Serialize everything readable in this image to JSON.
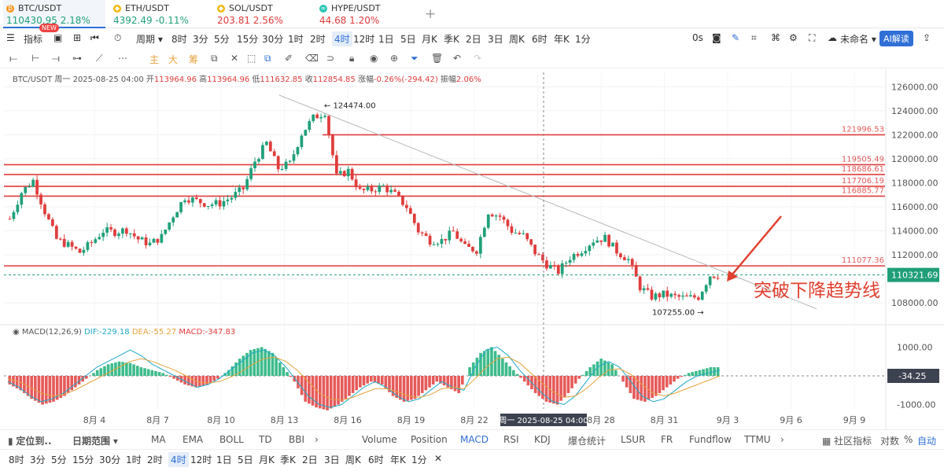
{
  "tickers": [
    {
      "symbol": "BTC/USDT",
      "price": "110430.95",
      "change": "2.18%",
      "dir": "up",
      "color": "#f7931a",
      "glyph": "₿"
    },
    {
      "symbol": "ETH/USDT",
      "price": "4392.49",
      "change": "-0.11%",
      "dir": "up",
      "color": "#f0b90b",
      "glyph": "◆"
    },
    {
      "symbol": "SOL/USDT",
      "price": "203.81",
      "change": "2.56%",
      "dir": "dn",
      "color": "#f0b90b",
      "glyph": "◆"
    },
    {
      "symbol": "HYPE/USDT",
      "price": "44.68",
      "change": "1.20%",
      "dir": "dn",
      "color": "#2bc4b4",
      "glyph": "∞"
    }
  ],
  "toolbar": {
    "indicator": "指标",
    "new_badge": "NEW",
    "period": "周期",
    "intervals": [
      "8时",
      "3分",
      "5分",
      "15分",
      "30分",
      "1时",
      "2时",
      "4时",
      "12时",
      "1日",
      "5日",
      "月K",
      "季K",
      "2日",
      "3日",
      "周K",
      "6时",
      "年K",
      "1分"
    ],
    "active_interval": "4时",
    "countdown": "0s",
    "layout_name": "未命名",
    "ai_button": "AI解读",
    "draw_labels": [
      "主",
      "大",
      "筹"
    ]
  },
  "info": {
    "symbol": "BTC/USDT",
    "date": "周一 2025-08-25 04:00",
    "open_label": "开",
    "open": "113964.96",
    "high_label": "高",
    "high": "113964.96",
    "low_label": "低",
    "low": "111632.85",
    "close_label": "收",
    "close": "112854.85",
    "chg_label": "涨幅",
    "chg": "-0.26%(-294.42)",
    "amp_label": "振幅",
    "amp": "2.06%"
  },
  "macd": {
    "name": "MACD(12,26,9)",
    "dif": "DIF:-229.18",
    "dea": "DEA:-55.27",
    "macd": "MACD:-347.83"
  },
  "chart_data": {
    "type": "candlestick",
    "title": "BTC/USDT 4H",
    "y_ticks": [
      126000,
      124000,
      122000,
      120000,
      118000,
      116000,
      114000,
      112000,
      110000,
      108000
    ],
    "y_tick_labels": [
      "126000.00",
      "124000.00",
      "122000.00",
      "120000.00",
      "118000.00",
      "116000.00",
      "114000.00",
      "112000.00",
      "110000.00",
      "108000.00"
    ],
    "ylim": [
      106500,
      127200
    ],
    "x_tick_labels": [
      "8月 4",
      "8月 7",
      "8月 10",
      "8月 13",
      "8月 16",
      "8月 19",
      "8月 22",
      "8月 25",
      "8月 28",
      "8月 31",
      "9月 3",
      "9月 6",
      "9月 9"
    ],
    "crosshair_label": "周一 2025-08-25 04:00",
    "high_label": "124474.00",
    "high_value": 124474,
    "low_label": "107255.00",
    "low_value": 107255,
    "current_price": "110321.69",
    "current_value": 110321.69,
    "levels": [
      {
        "value": 121996.53,
        "label": "121996.53"
      },
      {
        "value": 119505.49,
        "label": "119505.49"
      },
      {
        "value": 118686.61,
        "label": "118686.61"
      },
      {
        "value": 117706.19,
        "label": "117706.19"
      },
      {
        "value": 116885.77,
        "label": "116885.77"
      },
      {
        "value": 111077.36,
        "label": "111077.36"
      }
    ],
    "annotation": "突破下降趋势线",
    "macd_ticks": [
      1000,
      -1000
    ],
    "macd_tick_labels": [
      "1000.00",
      "-1000.00"
    ],
    "macd_current_label": "-34.25",
    "price_path": [
      115000,
      117200,
      118200,
      115600,
      113300,
      112800,
      112200,
      113000,
      114000,
      113900,
      114100,
      113300,
      112900,
      113500,
      115300,
      116800,
      116500,
      116200,
      116300,
      116800,
      117500,
      119800,
      121300,
      119200,
      119600,
      122100,
      123400,
      123900,
      118500,
      119000,
      117300,
      117400,
      117700,
      117000,
      116000,
      114000,
      113200,
      113200,
      113900,
      112600,
      112400,
      115600,
      115200,
      114000,
      113600,
      112200,
      111200,
      110600,
      111800,
      112400,
      113200,
      113400,
      112300,
      111600,
      109300,
      108500,
      108700,
      108500,
      108400,
      108500,
      110300
    ],
    "macd_hist": [
      -300,
      -500,
      -800,
      -1000,
      -900,
      -700,
      -400,
      -100,
      200,
      400,
      500,
      450,
      300,
      200,
      100,
      -100,
      -300,
      -400,
      -300,
      -100,
      200,
      600,
      900,
      1000,
      800,
      300,
      -200,
      -900,
      -1100,
      -1200,
      -1000,
      -700,
      -400,
      -200,
      -300,
      -700,
      -900,
      -800,
      -500,
      -200,
      -400,
      -600,
      300,
      800,
      1000,
      600,
      200,
      -200,
      -600,
      -900,
      -1000,
      -600,
      -100,
      300,
      600,
      400,
      -200,
      -800,
      -900,
      -700,
      -400,
      -100,
      100,
      200,
      300
    ],
    "dif_line": [
      -200,
      -400,
      -700,
      -900,
      -800,
      -600,
      -300,
      0,
      300,
      500,
      700,
      900,
      700,
      400,
      200,
      0,
      -200,
      -400,
      -300,
      -100,
      200,
      500,
      800,
      900,
      700,
      300,
      -200,
      -700,
      -1000,
      -1100,
      -1000,
      -700,
      -400,
      -200,
      -400,
      -700,
      -900,
      -800,
      -500,
      -200,
      -400,
      -500,
      300,
      900,
      1000,
      700,
      200,
      -200,
      -600,
      -900,
      -1000,
      -700,
      -200,
      300,
      500,
      300,
      -200,
      -700,
      -900,
      -800,
      -500,
      -200,
      0,
      100,
      200
    ],
    "dea_line": [
      -100,
      -200,
      -400,
      -600,
      -700,
      -650,
      -500,
      -300,
      -100,
      100,
      300,
      500,
      600,
      500,
      350,
      200,
      0,
      -200,
      -250,
      -200,
      -50,
      150,
      400,
      600,
      650,
      500,
      200,
      -200,
      -600,
      -800,
      -850,
      -750,
      -600,
      -450,
      -450,
      -550,
      -700,
      -750,
      -650,
      -450,
      -400,
      -450,
      -100,
      300,
      600,
      650,
      450,
      100,
      -250,
      -550,
      -750,
      -700,
      -450,
      -100,
      200,
      250,
      50,
      -300,
      -600,
      -700,
      -600,
      -450,
      -300,
      -150,
      0
    ]
  },
  "indicators": {
    "locate": "定位到..",
    "date_range": "日期范围",
    "main": [
      "MA",
      "EMA",
      "BOLL",
      "TD",
      "BBI"
    ],
    "sub": [
      "Volume",
      "Position",
      "MACD",
      "RSI",
      "KDJ",
      "爆仓统计",
      "LSUR",
      "FR",
      "Fundflow",
      "TTMU"
    ],
    "active_sub": "MACD",
    "right": [
      "社区指标",
      "对数",
      "%",
      "自动"
    ]
  }
}
